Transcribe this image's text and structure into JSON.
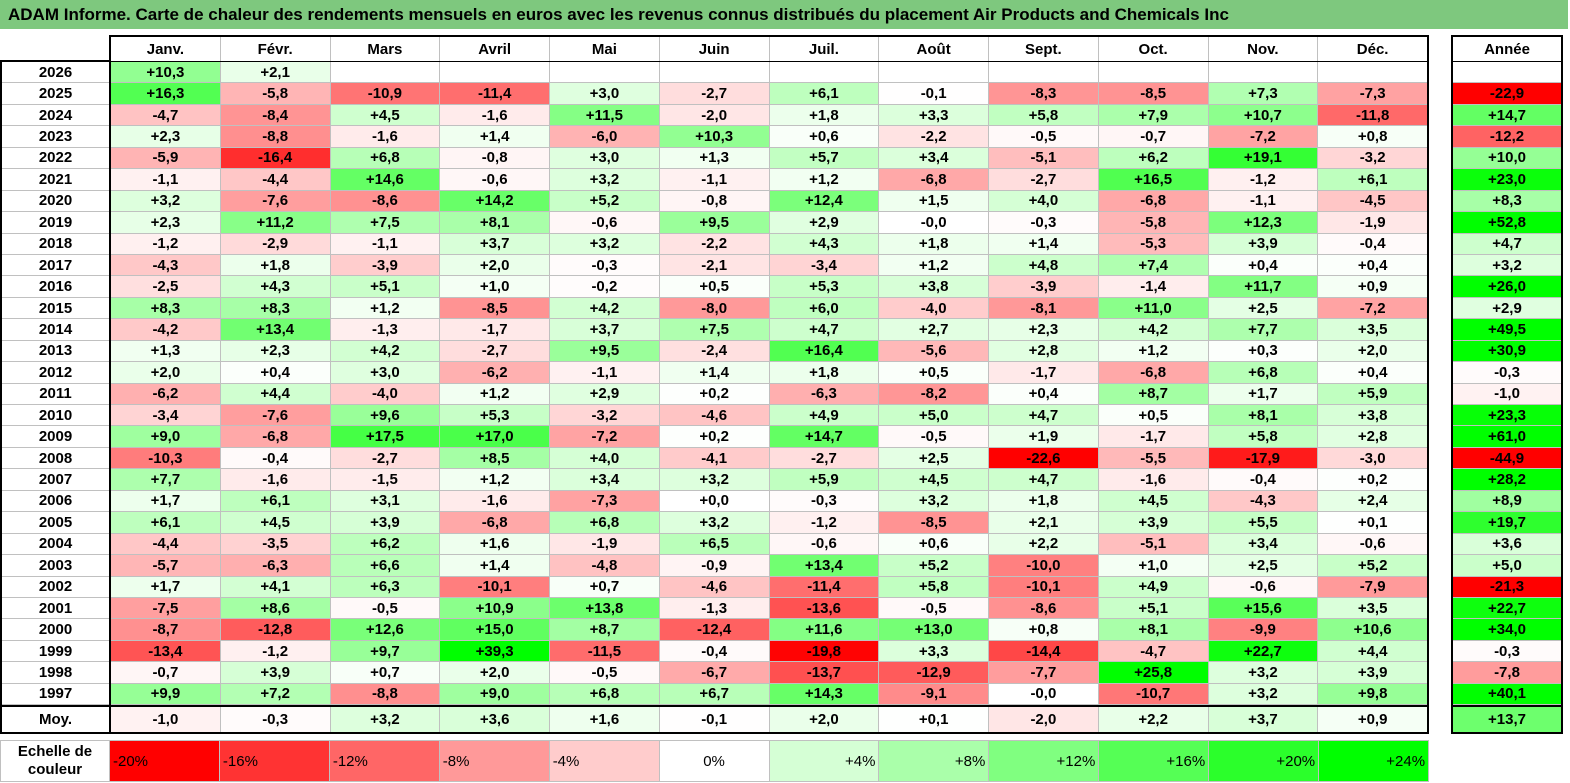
{
  "colors": {
    "title_bar": "#7ec87e",
    "negative_max": "#ff0000",
    "positive_max": "#00ff00",
    "neutral": "#ffffff"
  },
  "chart_data": {
    "type": "heatmap",
    "title": "ADAM Informe. Carte de chaleur des rendements mensuels en euros avec les revenus connus distribués du placement Air Products and Chemicals Inc",
    "columns": [
      "Janv.",
      "Févr.",
      "Mars",
      "Avril",
      "Mai",
      "Juin",
      "Juil.",
      "Août",
      "Sept.",
      "Oct.",
      "Nov.",
      "Déc."
    ],
    "total_header": "Année",
    "color_range": [
      -20,
      24
    ],
    "rows": [
      {
        "label": "2026",
        "values": [
          "+10,3",
          "+2,1",
          null,
          null,
          null,
          null,
          null,
          null,
          null,
          null,
          null,
          null
        ],
        "total": null
      },
      {
        "label": "2025",
        "values": [
          "+16,3",
          "-5,8",
          "-10,9",
          "-11,4",
          "+3,0",
          "-2,7",
          "+6,1",
          "-0,1",
          "-8,3",
          "-8,5",
          "+7,3",
          "-7,3"
        ],
        "total": "-22,9"
      },
      {
        "label": "2024",
        "values": [
          "-4,7",
          "-8,4",
          "+4,5",
          "-1,6",
          "+11,5",
          "-2,0",
          "+1,8",
          "+3,3",
          "+5,8",
          "+7,9",
          "+10,7",
          "-11,8"
        ],
        "total": "+14,7"
      },
      {
        "label": "2023",
        "values": [
          "+2,3",
          "-8,8",
          "-1,6",
          "+1,4",
          "-6,0",
          "+10,3",
          "+0,6",
          "-2,2",
          "-0,5",
          "-0,7",
          "-7,2",
          "+0,8"
        ],
        "total": "-12,2"
      },
      {
        "label": "2022",
        "values": [
          "-5,9",
          "-16,4",
          "+6,8",
          "-0,8",
          "+3,0",
          "+1,3",
          "+5,7",
          "+3,4",
          "-5,1",
          "+6,2",
          "+19,1",
          "-3,2"
        ],
        "total": "+10,0"
      },
      {
        "label": "2021",
        "values": [
          "-1,1",
          "-4,4",
          "+14,6",
          "-0,6",
          "+3,2",
          "-1,1",
          "+1,2",
          "-6,8",
          "-2,7",
          "+16,5",
          "-1,2",
          "+6,1"
        ],
        "total": "+23,0"
      },
      {
        "label": "2020",
        "values": [
          "+3,2",
          "-7,6",
          "-8,6",
          "+14,2",
          "+5,2",
          "-0,8",
          "+12,4",
          "+1,5",
          "+4,0",
          "-6,8",
          "-1,1",
          "-4,5"
        ],
        "total": "+8,3"
      },
      {
        "label": "2019",
        "values": [
          "+2,3",
          "+11,2",
          "+7,5",
          "+8,1",
          "-0,6",
          "+9,5",
          "+2,9",
          "-0,0",
          "-0,3",
          "-5,8",
          "+12,3",
          "-1,9"
        ],
        "total": "+52,8"
      },
      {
        "label": "2018",
        "values": [
          "-1,2",
          "-2,9",
          "-1,1",
          "+3,7",
          "+3,2",
          "-2,2",
          "+4,3",
          "+1,8",
          "+1,4",
          "-5,3",
          "+3,9",
          "-0,4"
        ],
        "total": "+4,7"
      },
      {
        "label": "2017",
        "values": [
          "-4,3",
          "+1,8",
          "-3,9",
          "+2,0",
          "-0,3",
          "-2,1",
          "-3,4",
          "+1,2",
          "+4,8",
          "+7,4",
          "+0,4",
          "+0,4"
        ],
        "total": "+3,2"
      },
      {
        "label": "2016",
        "values": [
          "-2,5",
          "+4,3",
          "+5,1",
          "+1,0",
          "-0,2",
          "+0,5",
          "+5,3",
          "+3,8",
          "-3,9",
          "-1,4",
          "+11,7",
          "+0,9"
        ],
        "total": "+26,0"
      },
      {
        "label": "2015",
        "values": [
          "+8,3",
          "+8,3",
          "+1,2",
          "-8,5",
          "+4,2",
          "-8,0",
          "+6,0",
          "-4,0",
          "-8,1",
          "+11,0",
          "+2,5",
          "-7,2"
        ],
        "total": "+2,9"
      },
      {
        "label": "2014",
        "values": [
          "-4,2",
          "+13,4",
          "-1,3",
          "-1,7",
          "+3,7",
          "+7,5",
          "+4,7",
          "+2,7",
          "+2,3",
          "+4,2",
          "+7,7",
          "+3,5"
        ],
        "total": "+49,5"
      },
      {
        "label": "2013",
        "values": [
          "+1,3",
          "+2,3",
          "+4,2",
          "-2,7",
          "+9,5",
          "-2,4",
          "+16,4",
          "-5,6",
          "+2,8",
          "+1,2",
          "+0,3",
          "+2,0"
        ],
        "total": "+30,9"
      },
      {
        "label": "2012",
        "values": [
          "+2,0",
          "+0,4",
          "+3,0",
          "-6,2",
          "-1,1",
          "+1,4",
          "+1,8",
          "+0,5",
          "-1,7",
          "-6,8",
          "+6,8",
          "+0,4"
        ],
        "total": "-0,3"
      },
      {
        "label": "2011",
        "values": [
          "-6,2",
          "+4,4",
          "-4,0",
          "+1,2",
          "+2,9",
          "+0,2",
          "-6,3",
          "-8,2",
          "+0,4",
          "+8,7",
          "+1,7",
          "+5,9"
        ],
        "total": "-1,0"
      },
      {
        "label": "2010",
        "values": [
          "-3,4",
          "-7,6",
          "+9,6",
          "+5,3",
          "-3,2",
          "-4,6",
          "+4,9",
          "+5,0",
          "+4,7",
          "+0,5",
          "+8,1",
          "+3,8"
        ],
        "total": "+23,3"
      },
      {
        "label": "2009",
        "values": [
          "+9,0",
          "-6,8",
          "+17,5",
          "+17,0",
          "-7,2",
          "+0,2",
          "+14,7",
          "-0,5",
          "+1,9",
          "-1,7",
          "+5,8",
          "+2,8"
        ],
        "total": "+61,0"
      },
      {
        "label": "2008",
        "values": [
          "-10,3",
          "-0,4",
          "-2,7",
          "+8,5",
          "+4,0",
          "-4,1",
          "-2,7",
          "+2,5",
          "-22,6",
          "-5,5",
          "-17,9",
          "-3,0"
        ],
        "total": "-44,9"
      },
      {
        "label": "2007",
        "values": [
          "+7,7",
          "-1,6",
          "-1,5",
          "+1,2",
          "+3,4",
          "+3,2",
          "+5,9",
          "+4,5",
          "+4,7",
          "-1,6",
          "-0,4",
          "+0,2"
        ],
        "total": "+28,2"
      },
      {
        "label": "2006",
        "values": [
          "+1,7",
          "+6,1",
          "+3,1",
          "-1,6",
          "-7,3",
          "+0,0",
          "-0,3",
          "+3,2",
          "+1,8",
          "+4,5",
          "-4,3",
          "+2,4"
        ],
        "total": "+8,9"
      },
      {
        "label": "2005",
        "values": [
          "+6,1",
          "+4,5",
          "+3,9",
          "-6,8",
          "+6,8",
          "+3,2",
          "-1,2",
          "-8,5",
          "+2,1",
          "+3,9",
          "+5,5",
          "+0,1"
        ],
        "total": "+19,7"
      },
      {
        "label": "2004",
        "values": [
          "-4,4",
          "-3,5",
          "+6,2",
          "+1,6",
          "-1,9",
          "+6,5",
          "-0,6",
          "+0,6",
          "+2,2",
          "-5,1",
          "+3,4",
          "-0,6"
        ],
        "total": "+3,6"
      },
      {
        "label": "2003",
        "values": [
          "-5,7",
          "-6,3",
          "+6,6",
          "+1,4",
          "-4,8",
          "-0,9",
          "+13,4",
          "+5,2",
          "-10,0",
          "+1,0",
          "+2,5",
          "+5,2"
        ],
        "total": "+5,0"
      },
      {
        "label": "2002",
        "values": [
          "+1,7",
          "+4,1",
          "+6,3",
          "-10,1",
          "+0,7",
          "-4,6",
          "-11,4",
          "+5,8",
          "-10,1",
          "+4,9",
          "-0,6",
          "-7,9"
        ],
        "total": "-21,3"
      },
      {
        "label": "2001",
        "values": [
          "-7,5",
          "+8,6",
          "-0,5",
          "+10,9",
          "+13,8",
          "-1,3",
          "-13,6",
          "-0,5",
          "-8,6",
          "+5,1",
          "+15,6",
          "+3,5"
        ],
        "total": "+22,7"
      },
      {
        "label": "2000",
        "values": [
          "-8,7",
          "-12,8",
          "+12,6",
          "+15,0",
          "+8,7",
          "-12,4",
          "+11,6",
          "+13,0",
          "+0,8",
          "+8,1",
          "-9,9",
          "+10,6"
        ],
        "total": "+34,0"
      },
      {
        "label": "1999",
        "values": [
          "-13,4",
          "-1,2",
          "+9,7",
          "+39,3",
          "-11,5",
          "-0,4",
          "-19,8",
          "+3,3",
          "-14,4",
          "-4,7",
          "+22,7",
          "+4,4"
        ],
        "total": "-0,3"
      },
      {
        "label": "1998",
        "values": [
          "-0,7",
          "+3,9",
          "+0,7",
          "+2,0",
          "-0,5",
          "-6,7",
          "-13,7",
          "-12,9",
          "-7,7",
          "+25,8",
          "+3,2",
          "+3,9"
        ],
        "total": "-7,8"
      },
      {
        "label": "1997",
        "values": [
          "+9,9",
          "+7,2",
          "-8,8",
          "+9,0",
          "+6,8",
          "+6,7",
          "+14,3",
          "-9,1",
          "-0,0",
          "-10,7",
          "+3,2",
          "+9,8"
        ],
        "total": "+40,1"
      }
    ],
    "average": {
      "label": "Moy.",
      "values": [
        "-1,0",
        "-0,3",
        "+3,2",
        "+3,6",
        "+1,6",
        "-0,1",
        "+2,0",
        "+0,1",
        "-2,0",
        "+2,2",
        "+3,7",
        "+0,9"
      ],
      "total": "+13,7"
    },
    "scale": {
      "label": "Echelle de couleur",
      "steps": [
        "-20%",
        "-16%",
        "-12%",
        "-8%",
        "-4%",
        "0%",
        "+4%",
        "+8%",
        "+12%",
        "+16%",
        "+20%",
        "+24%"
      ]
    }
  }
}
